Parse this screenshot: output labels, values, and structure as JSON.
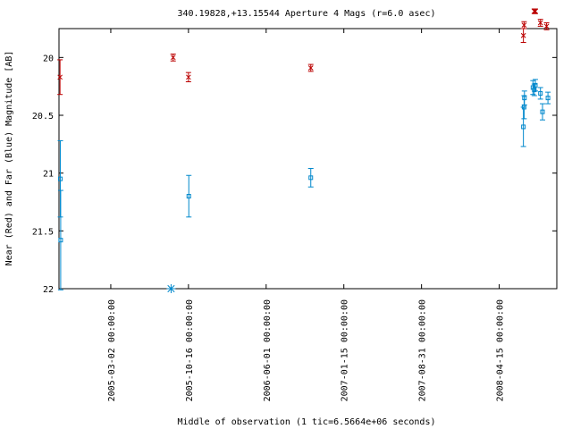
{
  "chart_data": {
    "type": "scatter",
    "title": "340.19828,+13.15544   Aperture 4 Mags (r=6.0 asec)",
    "xlabel": "Middle of observation (1 tic=6.5664e+06 seconds)",
    "ylabel": "Near (Red) and Far (Blue) Magnitude [AB]",
    "y_inverted": true,
    "ylim": [
      22.0,
      19.75
    ],
    "xlim": [
      "2004-10-01",
      "2008-10-01"
    ],
    "x_ticks": [
      {
        "date": "2005-03-02",
        "label": "2005-03-02 00:00:00"
      },
      {
        "date": "2005-10-16",
        "label": "2005-10-16 00:00:00"
      },
      {
        "date": "2006-06-01",
        "label": "2006-06-01 00:00:00"
      },
      {
        "date": "2007-01-15",
        "label": "2007-01-15 00:00:00"
      },
      {
        "date": "2007-08-31",
        "label": "2007-08-31 00:00:00"
      },
      {
        "date": "2008-04-15",
        "label": "2008-04-15 00:00:00"
      }
    ],
    "y_ticks": [
      20,
      20.5,
      21,
      21.5,
      22
    ],
    "grid": false,
    "series": [
      {
        "color": "#bb0000",
        "marker": "cross",
        "points": [
          {
            "x": "2004-10-04",
            "y": 20.17,
            "err": 0.15
          },
          {
            "x": "2005-09-01",
            "y": 20.0,
            "err": 0.03
          },
          {
            "x": "2005-10-16",
            "y": 20.17,
            "err": 0.04
          },
          {
            "x": "2006-10-10",
            "y": 20.09,
            "err": 0.03
          },
          {
            "x": "2008-06-25",
            "y": 19.81,
            "err": 0.06
          },
          {
            "x": "2008-06-27",
            "y": 19.72,
            "err": 0.03
          },
          {
            "x": "2008-07-27",
            "y": 19.6,
            "err": 0.02
          },
          {
            "x": "2008-07-30",
            "y": 19.6,
            "err": 0.02
          },
          {
            "x": "2008-08-14",
            "y": 19.7,
            "err": 0.03
          },
          {
            "x": "2008-09-01",
            "y": 19.73,
            "err": 0.03
          }
        ]
      },
      {
        "color": "#0088cc",
        "marker": "square",
        "points": [
          {
            "x": "2004-10-05",
            "y": 21.05,
            "err": 0.33
          },
          {
            "x": "2004-10-06",
            "y": 21.58,
            "err": 0.43
          },
          {
            "x": "2005-10-17",
            "y": 21.2,
            "err": 0.18
          },
          {
            "x": "2006-10-10",
            "y": 21.04,
            "err": 0.08
          },
          {
            "x": "2008-06-25",
            "y": 20.6,
            "err": 0.17
          },
          {
            "x": "2008-06-27",
            "y": 20.43,
            "err": 0.1
          },
          {
            "x": "2008-06-28",
            "y": 20.35,
            "err": 0.06
          },
          {
            "x": "2008-07-23",
            "y": 20.26,
            "err": 0.06
          },
          {
            "x": "2008-07-27",
            "y": 20.28,
            "err": 0.05
          },
          {
            "x": "2008-07-30",
            "y": 20.24,
            "err": 0.05
          },
          {
            "x": "2008-08-14",
            "y": 20.31,
            "err": 0.05
          },
          {
            "x": "2008-08-20",
            "y": 20.47,
            "err": 0.07
          },
          {
            "x": "2008-09-05",
            "y": 20.35,
            "err": 0.05
          }
        ]
      }
    ],
    "special_marker": {
      "x": "2005-08-26",
      "y": 22.0,
      "color": "#0088cc",
      "marker": "asterisk"
    }
  }
}
